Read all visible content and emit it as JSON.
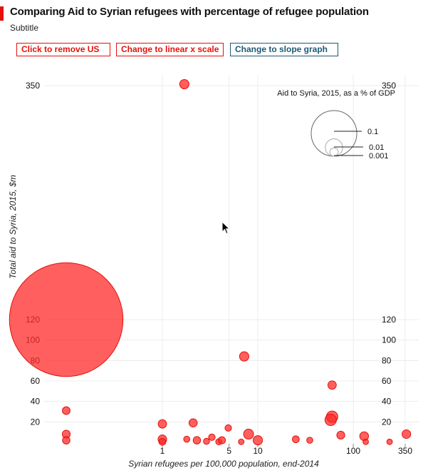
{
  "header": {
    "title": "Comparing Aid to Syrian refugees with percentage of refugee population",
    "subtitle": "Subtitle"
  },
  "buttons": {
    "remove_us": "Click to remove US",
    "linear_scale": "Change to linear x scale",
    "slope_graph": "Change to slope graph"
  },
  "colors": {
    "accent": "#e3120b",
    "bubble": "#ff2a2a",
    "slope_button": "#1d5a74"
  },
  "chart_data": {
    "type": "scatter",
    "title": "",
    "xlabel": "Syrian refugees per 100,000 population, end-2014",
    "ylabel": "Total aid to Syria, 2015, $m",
    "x_scale": "log",
    "x_ticks": [
      "1",
      "5",
      "10",
      "100",
      "350"
    ],
    "x_tick_values": [
      1,
      5,
      10,
      100,
      350
    ],
    "y_ticks_left": [
      "20",
      "40",
      "60",
      "80",
      "100",
      "120",
      "350"
    ],
    "y_ticks_right": [
      "20",
      "40",
      "60",
      "80",
      "100",
      "120",
      "350"
    ],
    "y_tick_values": [
      20,
      40,
      60,
      80,
      100,
      120,
      350
    ],
    "y_axis_break": "between 120 and 350",
    "grid": true,
    "size_legend": {
      "title": "Aid to Syria, 2015, as a % of GDP",
      "labels": [
        "0.1",
        "0.01",
        "0.001"
      ],
      "values": [
        0.1,
        0.01,
        0.001
      ],
      "placement": "top-right"
    },
    "points": [
      {
        "x": 1.7,
        "y": 355,
        "gdp_pct": 0.0015
      },
      {
        "x": 0.11,
        "y": 120,
        "gdp_pct": 0.7
      },
      {
        "x": 0.11,
        "y": 31,
        "gdp_pct": 0.0007
      },
      {
        "x": 0.11,
        "y": 8,
        "gdp_pct": 0.0008
      },
      {
        "x": 0.11,
        "y": 2,
        "gdp_pct": 0.0006
      },
      {
        "x": 1.0,
        "y": 18,
        "gdp_pct": 0.001
      },
      {
        "x": 1.0,
        "y": 3,
        "gdp_pct": 0.0011
      },
      {
        "x": 1.0,
        "y": 0.5,
        "gdp_pct": 0.0004
      },
      {
        "x": 2.1,
        "y": 19,
        "gdp_pct": 0.0009
      },
      {
        "x": 1.8,
        "y": 3,
        "gdp_pct": 0.0002
      },
      {
        "x": 2.3,
        "y": 2,
        "gdp_pct": 0.0006
      },
      {
        "x": 2.9,
        "y": 1,
        "gdp_pct": 0.0002
      },
      {
        "x": 3.3,
        "y": 5,
        "gdp_pct": 0.0003
      },
      {
        "x": 3.9,
        "y": 0.5,
        "gdp_pct": 0.0002
      },
      {
        "x": 4.2,
        "y": 2,
        "gdp_pct": 0.0005
      },
      {
        "x": 4.9,
        "y": 14,
        "gdp_pct": 0.0003
      },
      {
        "x": 6.7,
        "y": 0.5,
        "gdp_pct": 0.0001
      },
      {
        "x": 7.2,
        "y": 84,
        "gdp_pct": 0.0015
      },
      {
        "x": 8.0,
        "y": 8,
        "gdp_pct": 0.0019
      },
      {
        "x": 10.0,
        "y": 2,
        "gdp_pct": 0.0015
      },
      {
        "x": 25,
        "y": 3,
        "gdp_pct": 0.0004
      },
      {
        "x": 35,
        "y": 2,
        "gdp_pct": 0.0002
      },
      {
        "x": 60,
        "y": 56,
        "gdp_pct": 0.001
      },
      {
        "x": 60,
        "y": 25,
        "gdp_pct": 0.003
      },
      {
        "x": 58,
        "y": 22,
        "gdp_pct": 0.003
      },
      {
        "x": 74,
        "y": 7,
        "gdp_pct": 0.0008
      },
      {
        "x": 130,
        "y": 6,
        "gdp_pct": 0.0012
      },
      {
        "x": 135,
        "y": 0.5,
        "gdp_pct": 0.0001
      },
      {
        "x": 240,
        "y": 0.5,
        "gdp_pct": 0.0001
      },
      {
        "x": 360,
        "y": 8,
        "gdp_pct": 0.0011
      }
    ]
  }
}
